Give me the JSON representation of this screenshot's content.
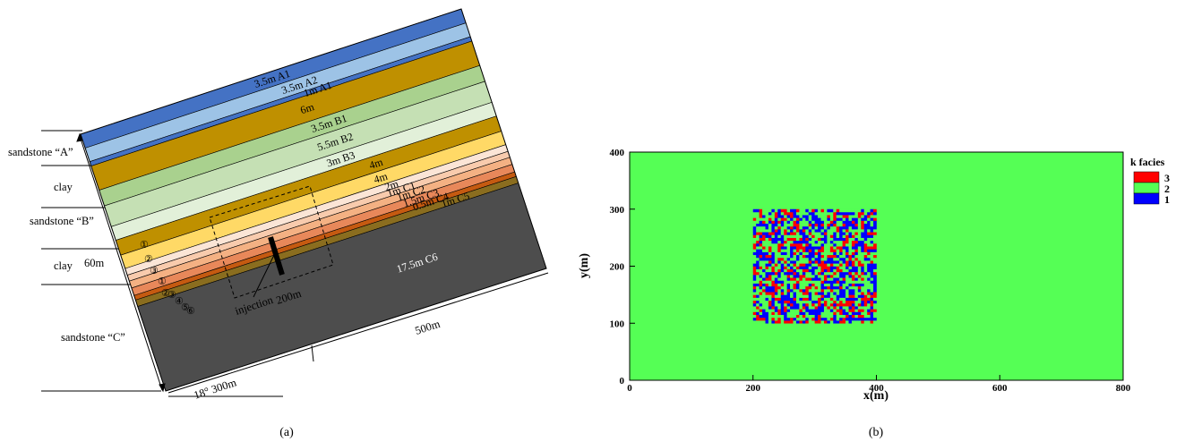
{
  "panel_a": {
    "caption": "(a)",
    "layers": [
      {
        "label": "3.5m  A1",
        "color": "#4472c4"
      },
      {
        "label": "3.5m  A2",
        "color": "#9dc3e6"
      },
      {
        "label": "1m  A1",
        "color": "#4472c4"
      },
      {
        "label": "6m",
        "color": "#bf9000"
      },
      {
        "label": "3.5m  B1",
        "color": "#a9d18e"
      },
      {
        "label": "5.5m  B2",
        "color": "#c5e0b4"
      },
      {
        "label": "3m  B3",
        "color": "#e2f0d9"
      },
      {
        "label": "4m",
        "color": "#bf9000"
      },
      {
        "label": "4m",
        "color": "#ffd966"
      },
      {
        "label": "2m",
        "color": "#fbe5d6"
      },
      {
        "label": "1m  C1",
        "color": "#f8cbad"
      },
      {
        "label": "1m  C2",
        "color": "#f4b183"
      },
      {
        "label": "1.5m  C3",
        "color": "#e8885a"
      },
      {
        "label": "0.5m  C4",
        "color": "#c55a11"
      },
      {
        "label": "1m  C5",
        "color": "#8a6d1f"
      },
      {
        "label": "17.5m  C6",
        "color": "#4d4d4d"
      }
    ],
    "circled": [
      "①",
      "②",
      "③",
      "①",
      "②",
      "③",
      "④",
      "⑤",
      "⑥"
    ],
    "left_labels": [
      "sandstone “A”",
      "clay",
      "sandstone “B”",
      "clay",
      "sandstone “C”"
    ],
    "dim_left": "60m",
    "dim_inner": "200m",
    "dim_bottom_right": "500m",
    "dim_bottom": "18°  300m",
    "injection_label": "injection"
  },
  "panel_b": {
    "caption": "(b)",
    "chart_data": {
      "type": "heatmap",
      "xlabel": "x(m)",
      "ylabel": "y(m)",
      "xlim": [
        0,
        800
      ],
      "ylim": [
        0,
        400
      ],
      "x_ticks": [
        0,
        200,
        400,
        600,
        800
      ],
      "y_ticks": [
        0,
        100,
        200,
        300,
        400
      ],
      "background_facies": 2,
      "heterogeneous_region": {
        "x": [
          200,
          400
        ],
        "y": [
          100,
          300
        ],
        "facies": [
          1,
          2,
          3
        ]
      },
      "legend": {
        "title": "k facies",
        "entries": [
          {
            "label": "3",
            "color": "#ff0000"
          },
          {
            "label": "2",
            "color": "#55ff55"
          },
          {
            "label": "1",
            "color": "#0000ff"
          }
        ]
      }
    }
  }
}
